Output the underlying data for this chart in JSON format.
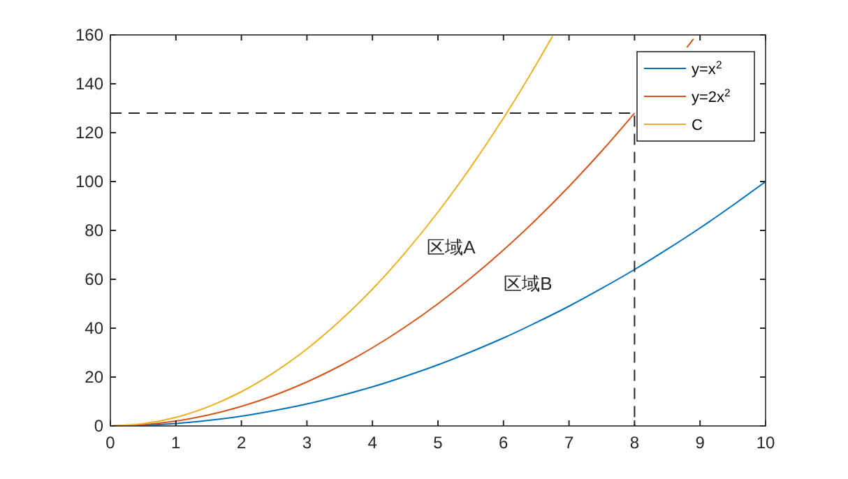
{
  "chart_data": {
    "type": "line",
    "xlim": [
      0,
      10
    ],
    "ylim": [
      0,
      160
    ],
    "xticks": [
      0,
      1,
      2,
      3,
      4,
      5,
      6,
      7,
      8,
      9,
      10
    ],
    "yticks": [
      0,
      20,
      40,
      60,
      80,
      100,
      120,
      140,
      160
    ],
    "grid": false,
    "legend": "top right",
    "marker": "none",
    "line_style": "solid",
    "series": [
      {
        "name": "y=x$^{2}$",
        "color": "#0072bd",
        "x": [
          0,
          0.5,
          1,
          1.5,
          2,
          2.5,
          3,
          3.5,
          4,
          4.5,
          5,
          5.5,
          6,
          6.5,
          7,
          7.5,
          8,
          8.5,
          9,
          9.5,
          10
        ],
        "values": [
          0,
          0.3,
          1,
          2.3,
          4,
          6.3,
          9,
          12.3,
          16,
          20.3,
          25,
          30.3,
          36,
          42.3,
          49,
          56.3,
          64,
          72.3,
          81,
          90.3,
          100
        ]
      },
      {
        "name": "y=2x$^{2}$",
        "color": "#d95319",
        "x": [
          0,
          0.5,
          1,
          1.5,
          2,
          2.5,
          3,
          3.5,
          4,
          4.5,
          5,
          5.5,
          6,
          6.5,
          7,
          7.5,
          8,
          8.5,
          8.8,
          8.9
        ],
        "values": [
          0,
          0.5,
          2,
          4.5,
          8,
          12.5,
          18,
          24.5,
          32,
          40.5,
          50,
          60.5,
          72,
          84.5,
          98,
          112.5,
          128,
          null,
          154.9,
          158.4
        ]
      },
      {
        "name": "C",
        "color": "#edb120",
        "x": [
          0,
          0.5,
          1,
          1.5,
          2,
          2.5,
          3,
          3.5,
          4,
          4.5,
          5,
          5.5,
          6,
          6.5,
          6.75
        ],
        "values": [
          0,
          0.9,
          3.5,
          7.9,
          14,
          21.9,
          31.5,
          42.9,
          56,
          70.9,
          87.5,
          105.9,
          126,
          147.9,
          159.5
        ]
      },
      {
        "type": "line",
        "color": "#262626",
        "line_style": "dashed",
        "x": [
          0,
          8,
          8
        ],
        "values": [
          128,
          128,
          0
        ]
      }
    ],
    "annotations": [
      "区域A",
      "区域B"
    ]
  }
}
